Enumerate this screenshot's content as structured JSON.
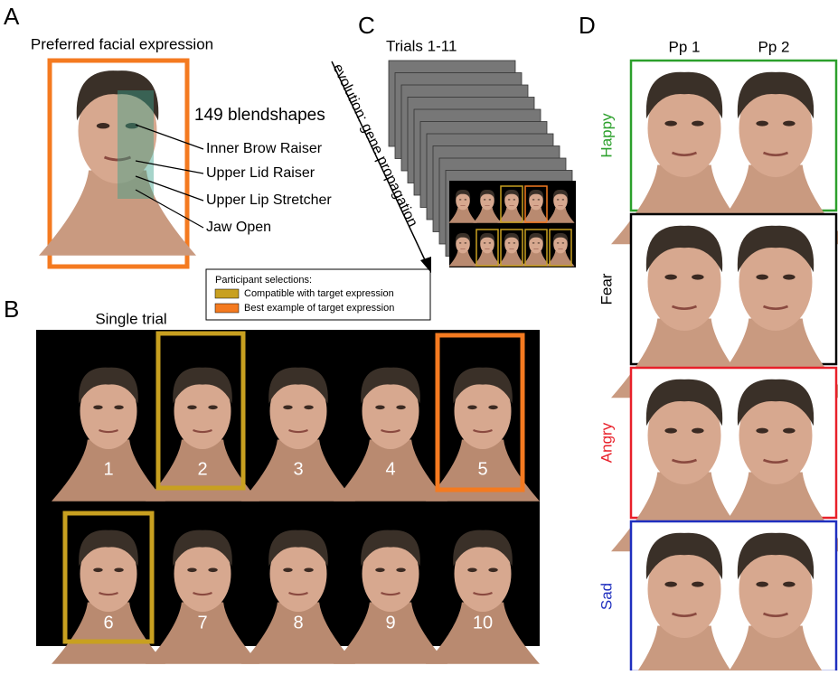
{
  "panels": {
    "a": {
      "letter": "A",
      "title": "Preferred facial expression",
      "blendshape_count": "149 blendshapes",
      "blendshapes": [
        "Inner Brow Raiser",
        "Upper Lid Raiser",
        "Upper Lip Stretcher",
        "Jaw Open"
      ]
    },
    "b": {
      "letter": "B",
      "title": "Single trial",
      "faces": [
        "1",
        "2",
        "3",
        "4",
        "5",
        "6",
        "7",
        "8",
        "9",
        "10"
      ]
    },
    "c": {
      "letter": "C",
      "title": "Trials 1-11",
      "arrow": "evolution: gene propagation"
    },
    "d": {
      "letter": "D",
      "columns": [
        "Pp 1",
        "Pp 2"
      ],
      "rows": [
        {
          "label": "Happy",
          "color": "#2ca02c"
        },
        {
          "label": "Fear",
          "color": "#000000"
        },
        {
          "label": "Angry",
          "color": "#e8202a"
        },
        {
          "label": "Sad",
          "color": "#1f2fbf"
        }
      ]
    },
    "legend": {
      "title": "Participant selections:",
      "items": [
        {
          "label": "Compatible with target expression",
          "color": "#c8a020"
        },
        {
          "label": "Best example of target expression",
          "color": "#f47a20"
        }
      ]
    }
  }
}
